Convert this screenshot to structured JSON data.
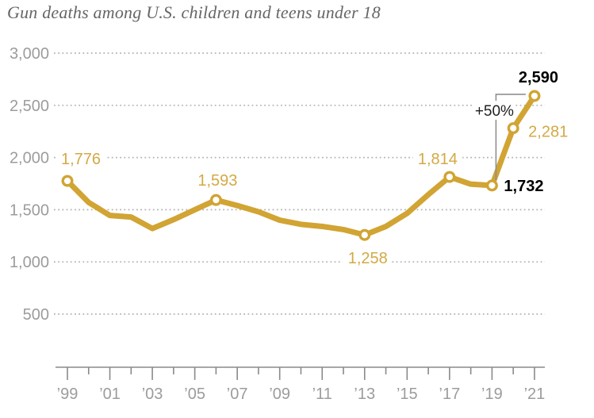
{
  "title": "Gun deaths among U.S. children and teens under 18",
  "colors": {
    "line": "#d1a433",
    "label_gold": "#d3a944",
    "label_black": "#000000",
    "axis": "#8a8a8a",
    "tick_label": "#9c9c9c",
    "gridline": "#b3b3b3",
    "title": "#666666",
    "annotation_line": "#909090",
    "annotation_text": "#1f1f1f",
    "marker_fill": "#ffffff"
  },
  "chart_data": {
    "type": "line",
    "title": "Gun deaths among U.S. children and teens under 18",
    "x": [
      1999,
      2000,
      2001,
      2002,
      2003,
      2004,
      2005,
      2006,
      2007,
      2008,
      2009,
      2010,
      2011,
      2012,
      2013,
      2014,
      2015,
      2016,
      2017,
      2018,
      2019,
      2020,
      2021
    ],
    "values": [
      1776,
      1570,
      1445,
      1430,
      1320,
      1405,
      1500,
      1593,
      1540,
      1480,
      1400,
      1360,
      1340,
      1310,
      1258,
      1340,
      1465,
      1645,
      1814,
      1745,
      1732,
      2281,
      2590
    ],
    "labeled_points": [
      {
        "year": 1999,
        "value": 1776,
        "label": "1,776",
        "emphasis": "gold"
      },
      {
        "year": 2006,
        "value": 1593,
        "label": "1,593",
        "emphasis": "gold"
      },
      {
        "year": 2013,
        "value": 1258,
        "label": "1,258",
        "emphasis": "gold"
      },
      {
        "year": 2017,
        "value": 1814,
        "label": "1,814",
        "emphasis": "gold"
      },
      {
        "year": 2019,
        "value": 1732,
        "label": "1,732",
        "emphasis": "black"
      },
      {
        "year": 2020,
        "value": 2281,
        "label": "2,281",
        "emphasis": "gold"
      },
      {
        "year": 2021,
        "value": 2590,
        "label": "2,590",
        "emphasis": "black"
      }
    ],
    "annotation": {
      "text": "+50%",
      "from_year": 2019,
      "to_year": 2021
    },
    "yticks": [
      500,
      1000,
      1500,
      2000,
      2500,
      3000
    ],
    "ytick_labels": [
      "500",
      "1,000",
      "1,500",
      "2,000",
      "2,500",
      "3,000"
    ],
    "xtick_years": [
      1999,
      2001,
      2003,
      2005,
      2007,
      2009,
      2011,
      2013,
      2015,
      2017,
      2019,
      2021
    ],
    "xtick_labels": [
      "’99",
      "’01",
      "’03",
      "’05",
      "’07",
      "’09",
      "’11",
      "’13",
      "’15",
      "’17",
      "’19",
      "’21"
    ],
    "ylim": [
      500,
      3000
    ],
    "grid": "dotted-horizontal",
    "legend": "none"
  }
}
